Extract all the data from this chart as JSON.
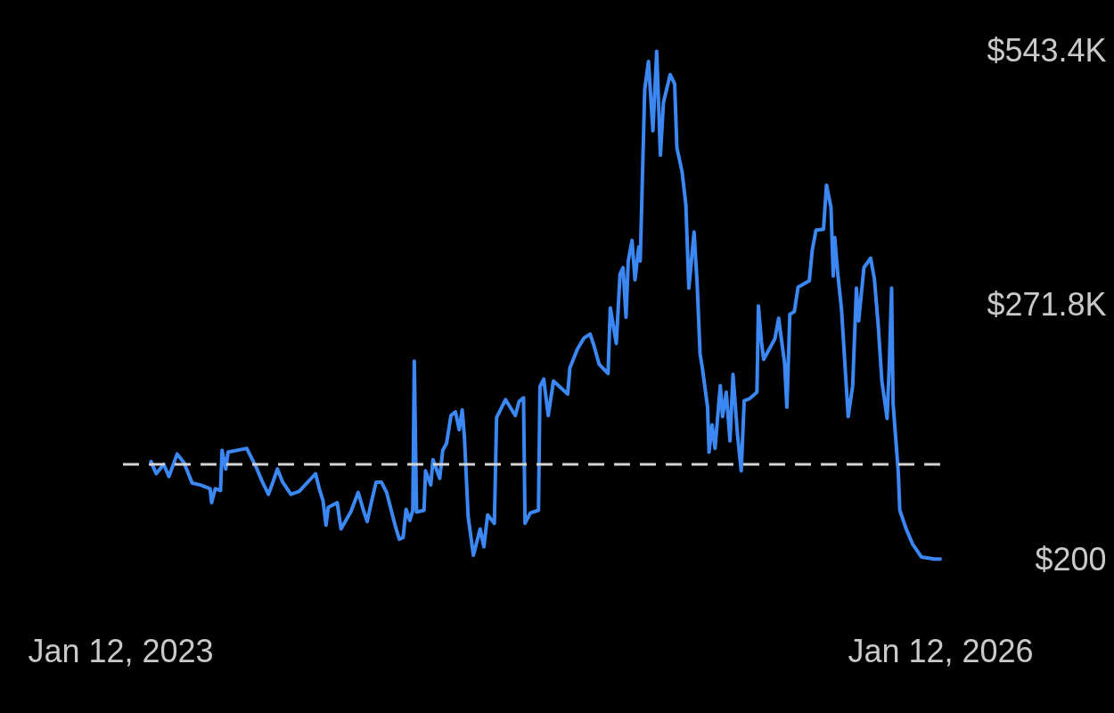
{
  "chart_data": {
    "type": "line",
    "color": "#3b87f4",
    "x": [
      "2023-02-22",
      "2023-03-01",
      "2023-03-11",
      "2023-03-18",
      "2023-03-29",
      "2023-04-07",
      "2023-04-18",
      "2023-04-29",
      "2023-05-12",
      "2023-05-14",
      "2023-05-19",
      "2023-05-26",
      "2023-05-28",
      "2023-06-02",
      "2023-06-05",
      "2023-06-30",
      "2023-07-12",
      "2023-07-21",
      "2023-07-29",
      "2023-08-04",
      "2023-08-10",
      "2023-08-17",
      "2023-08-28",
      "2023-09-08",
      "2023-09-30",
      "2023-10-05",
      "2023-10-10",
      "2023-10-14",
      "2023-10-17",
      "2023-10-29",
      "2023-11-03",
      "2023-11-16",
      "2023-11-26",
      "2023-12-03",
      "2023-12-08",
      "2023-12-14",
      "2023-12-20",
      "2023-12-27",
      "2024-01-03",
      "2024-01-15",
      "2024-01-20",
      "2024-01-25",
      "2024-01-29",
      "2024-02-03",
      "2024-02-07",
      "2024-02-09",
      "2024-02-12",
      "2024-02-22",
      "2024-02-24",
      "2024-03-02",
      "2024-03-05",
      "2024-03-14",
      "2024-03-18",
      "2024-03-23",
      "2024-03-29",
      "2024-04-04",
      "2024-04-09",
      "2024-04-13",
      "2024-04-16",
      "2024-04-21",
      "2024-04-28",
      "2024-05-07",
      "2024-05-12",
      "2024-05-17",
      "2024-05-26",
      "2024-05-29",
      "2024-06-10",
      "2024-06-23",
      "2024-06-28",
      "2024-07-04",
      "2024-07-06",
      "2024-07-13",
      "2024-07-24",
      "2024-07-26",
      "2024-07-31",
      "2024-08-06",
      "2024-08-13",
      "2024-09-01",
      "2024-09-04",
      "2024-09-14",
      "2024-09-23",
      "2024-10-01",
      "2024-10-06",
      "2024-10-13",
      "2024-10-25",
      "2024-10-28",
      "2024-11-05",
      "2024-11-10",
      "2024-11-14",
      "2024-11-18",
      "2024-11-21",
      "2024-11-26",
      "2024-11-30",
      "2024-12-05",
      "2024-12-07",
      "2024-12-13",
      "2024-12-18",
      "2024-12-24",
      "2024-12-29",
      "2025-01-03",
      "2025-01-07",
      "2025-01-16",
      "2025-01-22",
      "2025-01-25",
      "2025-02-01",
      "2025-02-06",
      "2025-02-10",
      "2025-02-17",
      "2025-02-21",
      "2025-02-25",
      "2025-02-28",
      "2025-03-07",
      "2025-03-09",
      "2025-03-13",
      "2025-03-17",
      "2025-03-24",
      "2025-03-27",
      "2025-04-01",
      "2025-04-06",
      "2025-04-10",
      "2025-04-16",
      "2025-04-21",
      "2025-04-25",
      "2025-05-02",
      "2025-05-12",
      "2025-05-14",
      "2025-05-18",
      "2025-05-21",
      "2025-06-05",
      "2025-06-10",
      "2025-06-18",
      "2025-06-21",
      "2025-06-25",
      "2025-07-01",
      "2025-07-06",
      "2025-07-21",
      "2025-07-25",
      "2025-07-30",
      "2025-08-09",
      "2025-08-13",
      "2025-08-19",
      "2025-08-22",
      "2025-08-24",
      "2025-08-28",
      "2025-09-02",
      "2025-09-11",
      "2025-09-17",
      "2025-09-22",
      "2025-09-25",
      "2025-10-02",
      "2025-10-11",
      "2025-10-16",
      "2025-10-21",
      "2025-10-26",
      "2025-11-02",
      "2025-11-05",
      "2025-11-08",
      "2025-11-10",
      "2025-11-17",
      "2025-11-19",
      "2025-11-27",
      "2025-12-06",
      "2025-12-18",
      "2026-01-04",
      "2026-01-12"
    ],
    "values": [
      105000,
      92000,
      102000,
      89000,
      113000,
      104000,
      82000,
      80000,
      76000,
      61000,
      76000,
      74000,
      117000,
      97000,
      115000,
      119000,
      100000,
      83000,
      70000,
      83000,
      97000,
      83000,
      70000,
      73000,
      92000,
      76000,
      63000,
      37000,
      56000,
      61000,
      33000,
      51000,
      72000,
      53000,
      41000,
      63000,
      83000,
      83000,
      72000,
      35000,
      22000,
      24000,
      54000,
      42000,
      53000,
      212000,
      51000,
      53000,
      95000,
      80000,
      107000,
      87000,
      117000,
      124000,
      154000,
      158000,
      139000,
      160000,
      131000,
      46000,
      5000,
      33000,
      14000,
      48000,
      39000,
      152000,
      171000,
      154000,
      169000,
      173000,
      39000,
      50000,
      53000,
      185000,
      193000,
      154000,
      191000,
      177000,
      205000,
      225000,
      237000,
      241000,
      229000,
      209000,
      199000,
      269000,
      231000,
      305000,
      312000,
      259000,
      319000,
      341000,
      299000,
      334000,
      319000,
      502000,
      532000,
      458000,
      543000,
      432000,
      488000,
      518000,
      508000,
      440000,
      414000,
      379000,
      290000,
      350000,
      296000,
      220000,
      205000,
      163000,
      115000,
      144000,
      119000,
      186000,
      153000,
      179000,
      127000,
      198000,
      134000,
      95000,
      170000,
      172000,
      179000,
      271000,
      233000,
      214000,
      236000,
      258000,
      210000,
      163000,
      262000,
      265000,
      291000,
      298000,
      331000,
      352000,
      353000,
      400000,
      376000,
      303000,
      344000,
      306000,
      268000,
      153000,
      186000,
      290000,
      255000,
      312000,
      322000,
      300000,
      252000,
      191000,
      151000,
      210000,
      290000,
      167000,
      93000,
      53000,
      34000,
      17000,
      3000,
      1000,
      1000
    ],
    "xlim": [
      "2023-01-12",
      "2026-01-12"
    ],
    "xticks": [
      {
        "value": "2023-01-12",
        "label": "Jan 12, 2023"
      },
      {
        "value": "2026-01-12",
        "label": "Jan 12, 2026"
      }
    ],
    "ylim": [
      200,
      543400
    ],
    "yticks": [
      {
        "value": 200,
        "label": "$200"
      },
      {
        "value": 271800,
        "label": "$271.8K"
      },
      {
        "value": 543400,
        "label": "$543.4K"
      }
    ],
    "ref_lines": [
      {
        "axis": "y",
        "value": 102000,
        "color": "#d4d4d4",
        "line_style": "dashed"
      }
    ]
  }
}
